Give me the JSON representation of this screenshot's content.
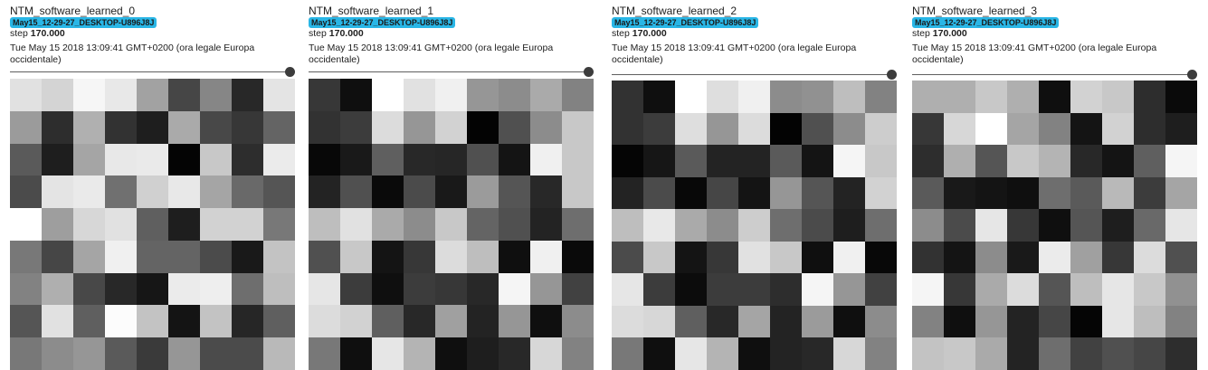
{
  "accent_color": "#29b6e6",
  "panels": [
    {
      "title": "NTM_software_learned_0",
      "run": "May15_12-29-27_DESKTOP-U896J8J",
      "step_label": "step",
      "step_value": "170.000",
      "timestamp": "Tue May 15 2018 13:09:41 GMT+0200 (ora legale Europa occidentale)",
      "slider_position": 1.0,
      "slider_thumb_icon": "slider-thumb-icon",
      "cells": [
        [
          225,
          212,
          246,
          232,
          162,
          70,
          134,
          40,
          228
        ],
        [
          155,
          45,
          176,
          50,
          30,
          170,
          72,
          55,
          100
        ],
        [
          90,
          30,
          165,
          232,
          234,
          4,
          200,
          45,
          235
        ],
        [
          75,
          228,
          234,
          112,
          208,
          232,
          165,
          105,
          85
        ],
        [
          255,
          158,
          215,
          225,
          95,
          30,
          210,
          210,
          120
        ],
        [
          120,
          70,
          165,
          240,
          100,
          100,
          75,
          25,
          195
        ],
        [
          130,
          175,
          72,
          40,
          22,
          235,
          238,
          110,
          190
        ],
        [
          85,
          225,
          95,
          252,
          195,
          20,
          195,
          38,
          95
        ],
        [
          120,
          140,
          150,
          90,
          58,
          150,
          75,
          75,
          185
        ]
      ]
    },
    {
      "title": "NTM_software_learned_1",
      "run": "May15_12-29-27_DESKTOP-U896J8J",
      "step_label": "step",
      "step_value": "170.000",
      "timestamp": "Tue May 15 2018 13:09:41 GMT+0200 (ora legale Europa occidentale)",
      "slider_position": 1.0,
      "slider_thumb_icon": "slider-thumb-icon",
      "cells": [
        [
          55,
          15,
          255,
          225,
          240,
          150,
          140,
          170,
          130
        ],
        [
          50,
          60,
          220,
          150,
          210,
          3,
          80,
          140,
          200
        ],
        [
          8,
          25,
          95,
          40,
          38,
          80,
          20,
          240,
          200
        ],
        [
          35,
          80,
          10,
          75,
          25,
          155,
          85,
          40,
          200
        ],
        [
          190,
          225,
          170,
          140,
          200,
          100,
          80,
          35,
          110
        ],
        [
          80,
          200,
          20,
          55,
          220,
          190,
          15,
          240,
          10
        ],
        [
          230,
          60,
          15,
          60,
          55,
          40,
          245,
          150,
          65
        ],
        [
          220,
          210,
          95,
          40,
          160,
          35,
          150,
          15,
          140
        ],
        [
          120,
          15,
          230,
          180,
          15,
          30,
          40,
          215,
          130
        ]
      ]
    },
    {
      "title": "NTM_software_learned_2",
      "run": "May15_12-29-27_DESKTOP-U896J8J",
      "step_label": "step",
      "step_value": "170.000",
      "timestamp": "Tue May 15 2018 13:09:41 GMT+0200 (ora legale Europa occidentale)",
      "slider_position": 1.0,
      "slider_thumb_icon": "slider-thumb-icon",
      "cells": [
        [
          50,
          15,
          255,
          222,
          240,
          140,
          145,
          190,
          130
        ],
        [
          50,
          60,
          222,
          150,
          220,
          3,
          80,
          140,
          205
        ],
        [
          5,
          22,
          90,
          35,
          35,
          90,
          20,
          245,
          200
        ],
        [
          35,
          75,
          8,
          70,
          20,
          150,
          85,
          35,
          210
        ],
        [
          190,
          232,
          170,
          140,
          205,
          110,
          75,
          30,
          110
        ],
        [
          75,
          200,
          20,
          55,
          225,
          200,
          15,
          240,
          8
        ],
        [
          230,
          60,
          12,
          60,
          60,
          45,
          245,
          150,
          65
        ],
        [
          220,
          215,
          95,
          40,
          165,
          35,
          155,
          15,
          140
        ],
        [
          120,
          15,
          230,
          180,
          15,
          35,
          40,
          215,
          130
        ]
      ]
    },
    {
      "title": "NTM_software_learned_3",
      "run": "May15_12-29-27_DESKTOP-U896J8J",
      "step_label": "step",
      "step_value": "170.000",
      "timestamp": "Tue May 15 2018 13:09:41 GMT+0200 (ora legale Europa occidentale)",
      "slider_position": 1.0,
      "slider_thumb_icon": "slider-thumb-icon",
      "cells": [
        [
          175,
          175,
          200,
          175,
          15,
          210,
          200,
          45,
          10
        ],
        [
          55,
          215,
          255,
          165,
          130,
          20,
          210,
          45,
          30
        ],
        [
          45,
          175,
          85,
          200,
          180,
          40,
          20,
          95,
          245
        ],
        [
          90,
          25,
          20,
          15,
          110,
          90,
          185,
          60,
          165
        ],
        [
          140,
          75,
          230,
          55,
          15,
          85,
          30,
          105,
          230
        ],
        [
          50,
          20,
          140,
          25,
          235,
          160,
          55,
          220,
          80
        ],
        [
          245,
          55,
          170,
          220,
          85,
          190,
          230,
          200,
          145
        ],
        [
          130,
          15,
          150,
          35,
          70,
          5,
          230,
          190,
          130
        ],
        [
          195,
          200,
          170,
          35,
          110,
          65,
          80,
          70,
          45
        ]
      ]
    }
  ]
}
